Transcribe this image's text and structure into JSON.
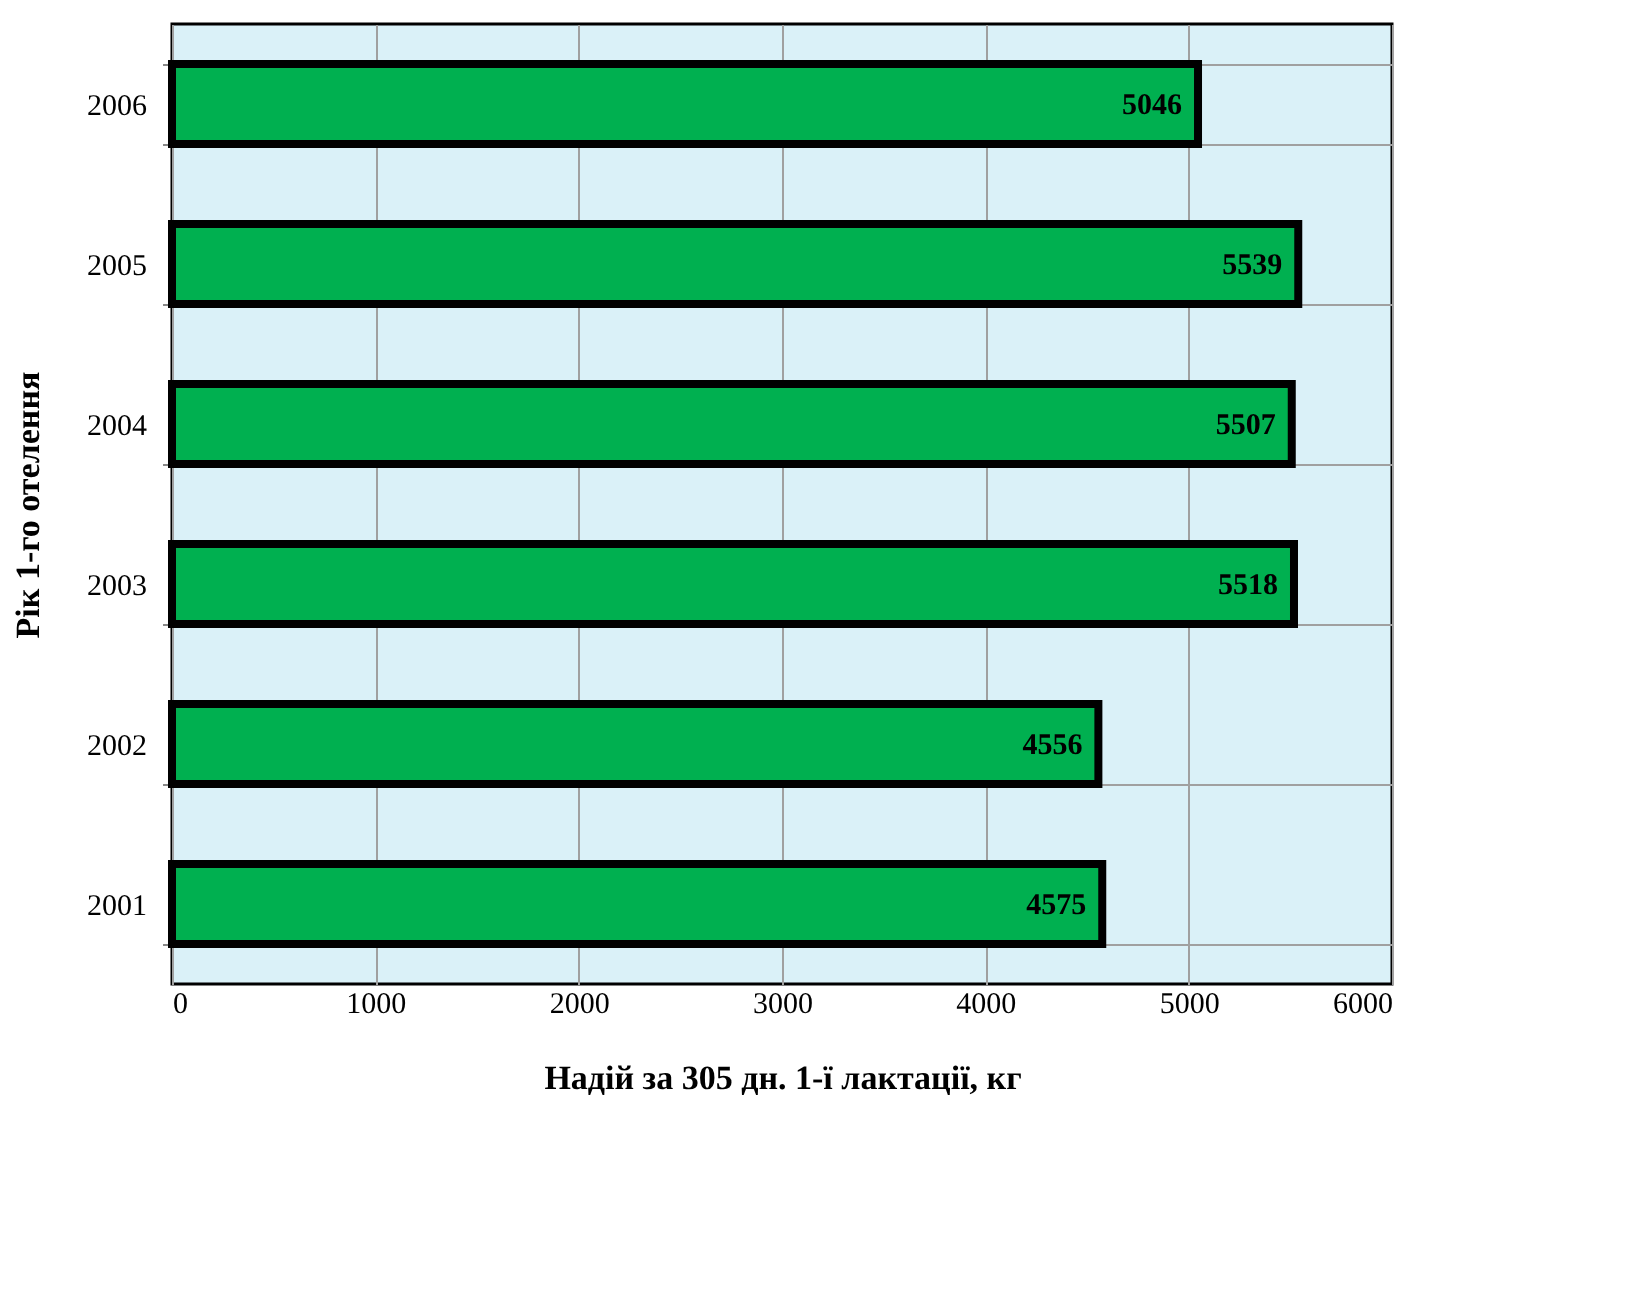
{
  "chart_data": {
    "type": "bar",
    "orientation": "horizontal",
    "xlabel": "Надій за 305 дн. 1-ї лактації, кг",
    "ylabel": "Рік 1-го отелення",
    "categories": [
      "2006",
      "2005",
      "2004",
      "2003",
      "2002",
      "2001"
    ],
    "values": [
      5046,
      5539,
      5507,
      5518,
      4556,
      4575
    ],
    "color": "#00b050",
    "xlim": [
      0,
      6000
    ],
    "xticks": [
      0,
      1000,
      2000,
      3000,
      4000,
      5000,
      6000
    ],
    "grid": true,
    "data_labels": true
  }
}
